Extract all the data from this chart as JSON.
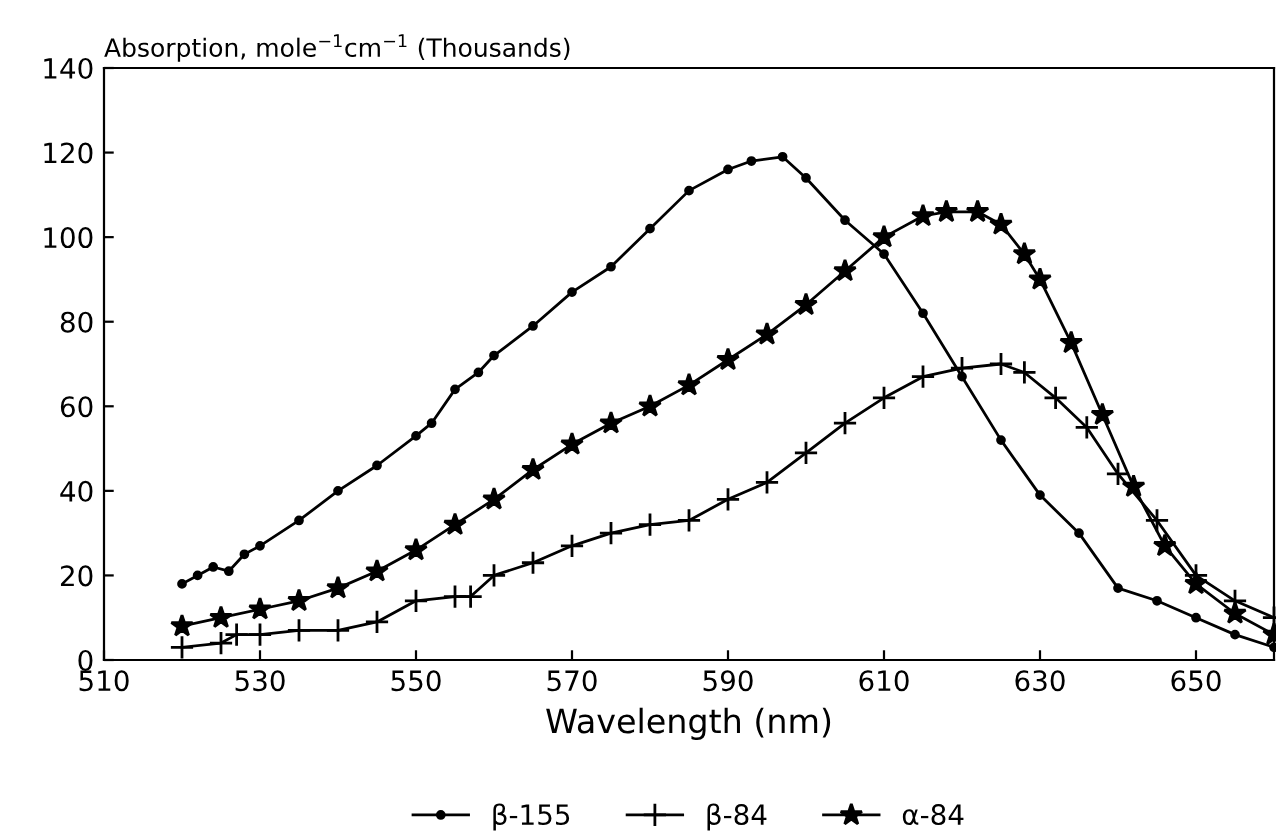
{
  "chart_data": {
    "type": "line",
    "ylabel": "Absorption, mole$^{−1}$cm$^{−1}$ (Thousands)",
    "xlabel": "Wavelength (nm)",
    "xlim": [
      510,
      660
    ],
    "xticks": [
      510,
      530,
      550,
      570,
      590,
      610,
      630,
      650
    ],
    "ylim": [
      0,
      140
    ],
    "yticks": [
      0,
      20,
      40,
      60,
      80,
      100,
      120,
      140
    ],
    "grid": false,
    "legend": "bottom",
    "series": [
      {
        "name": "β-155",
        "color": "#000000",
        "marker": "circle",
        "x": [
          520,
          522,
          524,
          526,
          528,
          530,
          535,
          540,
          545,
          550,
          552,
          555,
          558,
          560,
          565,
          570,
          575,
          580,
          585,
          590,
          593,
          597,
          600,
          605,
          610,
          615,
          620,
          625,
          630,
          635,
          640,
          645,
          650,
          655,
          660
        ],
        "values": [
          18,
          20,
          22,
          21,
          25,
          27,
          33,
          40,
          46,
          53,
          56,
          64,
          68,
          72,
          79,
          87,
          93,
          102,
          111,
          116,
          118,
          119,
          114,
          104,
          96,
          82,
          67,
          52,
          39,
          30,
          17,
          14,
          10,
          6,
          3
        ]
      },
      {
        "name": "β-84",
        "color": "#000000",
        "marker": "cross",
        "x": [
          520,
          525,
          527,
          530,
          535,
          540,
          545,
          550,
          555,
          557,
          560,
          565,
          570,
          575,
          580,
          585,
          590,
          595,
          600,
          605,
          610,
          615,
          620,
          625,
          628,
          632,
          636,
          640,
          645,
          650,
          655,
          660
        ],
        "values": [
          3,
          4,
          6,
          6,
          7,
          7,
          9,
          14,
          15,
          15,
          20,
          23,
          27,
          30,
          32,
          33,
          38,
          42,
          49,
          56,
          62,
          67,
          69,
          70,
          68,
          62,
          55,
          44,
          33,
          20,
          14,
          10
        ]
      },
      {
        "name": "α-84",
        "color": "#000000",
        "marker": "star",
        "x": [
          520,
          525,
          530,
          535,
          540,
          545,
          550,
          555,
          560,
          565,
          570,
          575,
          580,
          585,
          590,
          595,
          600,
          605,
          610,
          615,
          618,
          622,
          625,
          628,
          630,
          634,
          638,
          642,
          646,
          650,
          655,
          660
        ],
        "values": [
          8,
          10,
          12,
          14,
          17,
          21,
          26,
          32,
          38,
          45,
          51,
          56,
          60,
          65,
          71,
          77,
          84,
          92,
          100,
          105,
          106,
          106,
          103,
          96,
          90,
          75,
          58,
          41,
          27,
          18,
          11,
          6
        ]
      }
    ]
  }
}
